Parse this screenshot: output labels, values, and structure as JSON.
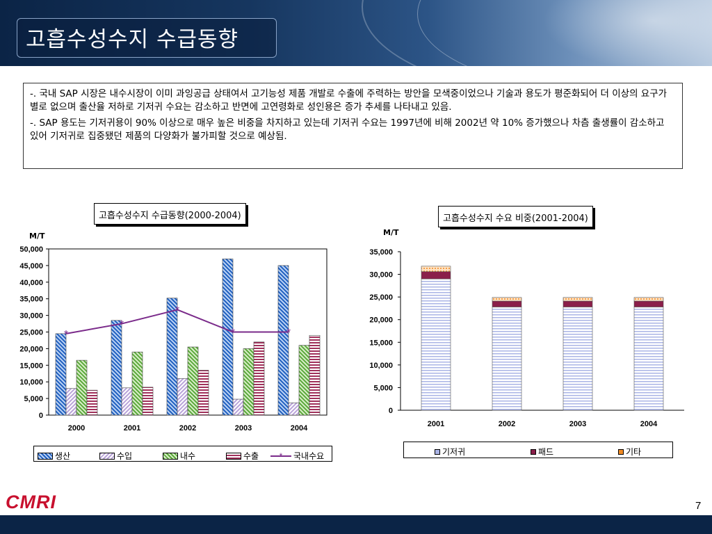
{
  "slide": {
    "title": "고흡수성수지 수급동향",
    "page_number": "7",
    "logo_text": "CMRI"
  },
  "description": {
    "paragraphs": [
      "-. 국내 SAP 시장은 내수시장이 이미 과잉공급 상태여서 고기능성 제품 개발로 수출에 주력하는 방안을 모색중이었으나 기술과 용도가 평준화되어 더 이상의 요구가 별로 없으며 출산율 저하로 기저귀 수요는 감소하고 반면에 고연령화로 성인용은 증가 추세를 나타내고 있음.",
      "-. SAP 용도는 기저귀용이 90% 이상으로 매우 높은 비중을 차지하고 있는데 기저귀 수요는 1997년에 비해 2002년 약 10% 증가했으나 차츰 출생률이  감소하고 있어 기저귀로 집중됐던 제품의 다양화가 불가피할 것으로 예상됨."
    ]
  },
  "chart_data": [
    {
      "type": "bar",
      "title": "고흡수성수지 수급동향(2000-2004)",
      "ylabel": "M/T",
      "categories": [
        "2000",
        "2001",
        "2002",
        "2003",
        "2004"
      ],
      "ylim": [
        0,
        50000
      ],
      "yticks": [
        0,
        5000,
        10000,
        15000,
        20000,
        25000,
        30000,
        35000,
        40000,
        45000,
        50000
      ],
      "ytick_labels": [
        "0",
        "5,000",
        "10,000",
        "15,000",
        "20,000",
        "25,000",
        "30,000",
        "35,000",
        "40,000",
        "45,000",
        "50,000"
      ],
      "series": [
        {
          "name": "생산",
          "values": [
            24500,
            28500,
            35200,
            47000,
            45000
          ],
          "color": "#1f5fbf"
        },
        {
          "name": "수입",
          "values": [
            8000,
            8200,
            11000,
            4800,
            3700
          ],
          "color": "#b9a3d9"
        },
        {
          "name": "내수",
          "values": [
            16500,
            19000,
            20500,
            20000,
            21000
          ],
          "color": "#5aa83a"
        },
        {
          "name": "수출",
          "values": [
            7500,
            8400,
            13500,
            22000,
            24000
          ],
          "color": "#a0305a"
        }
      ],
      "line_series": {
        "name": "국내수요",
        "values": [
          24500,
          27500,
          31700,
          25000,
          25000
        ],
        "color": "#7a2a8a"
      },
      "legend": "bottom"
    },
    {
      "type": "bar",
      "stacked": true,
      "title": "고흡수성수지 수요 비중(2001-2004)",
      "ylabel": "M/T",
      "categories": [
        "2001",
        "2002",
        "2003",
        "2004"
      ],
      "ylim": [
        0,
        35000
      ],
      "yticks": [
        0,
        5000,
        10000,
        15000,
        20000,
        25000,
        30000,
        35000
      ],
      "ytick_labels": [
        "0",
        "5,000",
        "10,000",
        "15,000",
        "20,000",
        "25,000",
        "30,000",
        "35,000"
      ],
      "series": [
        {
          "name": "기저귀",
          "values": [
            29000,
            22800,
            22800,
            22800
          ],
          "color": "#aab4e6"
        },
        {
          "name": "패드",
          "values": [
            1600,
            1300,
            1300,
            1300
          ],
          "color": "#8a1f4a"
        },
        {
          "name": "기타",
          "values": [
            1200,
            800,
            800,
            800
          ],
          "color": "#f08a24"
        }
      ],
      "legend": "bottom"
    }
  ]
}
